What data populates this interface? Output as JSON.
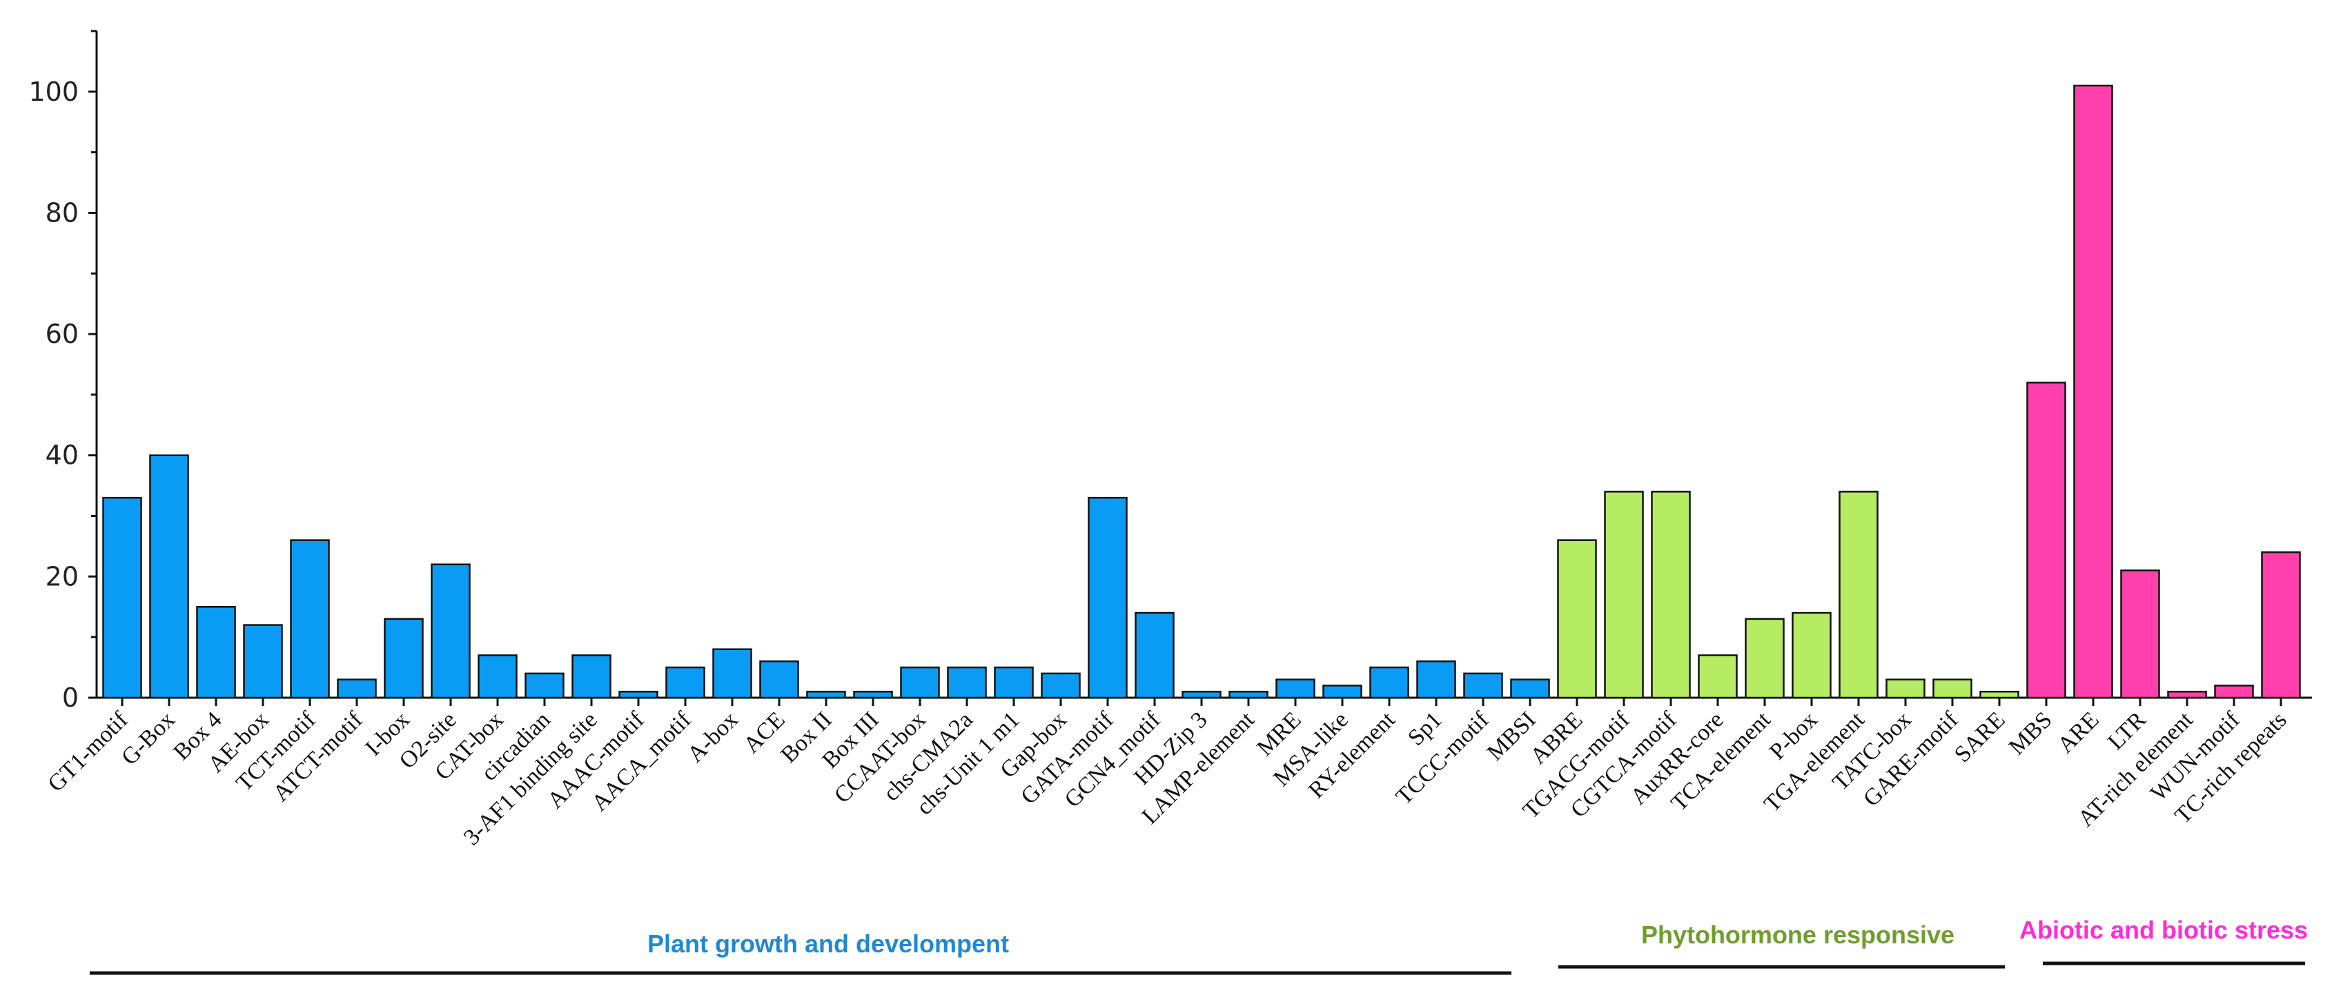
{
  "chart_data": {
    "type": "bar",
    "title": "",
    "xlabel": "",
    "ylabel": "",
    "ylim": [
      0,
      110
    ],
    "yticks": [
      0,
      20,
      40,
      60,
      80,
      100
    ],
    "grid": false,
    "legend": "none",
    "categories": [
      "GT1-motif",
      "G-Box",
      "Box 4",
      "AE-box",
      "TCT-motif",
      "ATCT-motif",
      "I-box",
      "O2-site",
      "CAT-box",
      "circadian",
      "3-AF1 binding site",
      "AAAC-motif",
      "AACA_motif",
      "A-box",
      "ACE",
      "Box II",
      "Box III",
      "CCAAT-box",
      "chs-CMA2a",
      "chs-Unit 1 m1",
      "Gap-box",
      "GATA-motif",
      "GCN4_motif",
      "HD-Zip 3",
      "LAMP-element",
      "MRE",
      "MSA-like",
      "RY-element",
      "Sp1",
      "TCCC-motif",
      "MBSI",
      "ABRE",
      "TGACG-motif",
      "CGTCA-motif",
      "AuxRR-core",
      "TCA-element",
      "P-box",
      "TGA-element",
      "TATC-box",
      "GARE-motif",
      "SARE",
      "MBS",
      "ARE",
      "LTR",
      "AT-rich element",
      "WUN-motif",
      "TC-rich repeats"
    ],
    "values": [
      33,
      40,
      15,
      12,
      26,
      3,
      13,
      22,
      7,
      4,
      7,
      1,
      5,
      8,
      6,
      1,
      1,
      5,
      5,
      5,
      4,
      33,
      14,
      1,
      1,
      3,
      2,
      5,
      6,
      4,
      3,
      26,
      34,
      34,
      7,
      13,
      14,
      34,
      3,
      3,
      1,
      52,
      101,
      21,
      1,
      2,
      24
    ],
    "groups": [
      {
        "name": "Plant growth and develompent",
        "start": 0,
        "end": 30,
        "bar_color": "#0a9cf5",
        "label_color": "#1e88d6"
      },
      {
        "name": "Phytohormone responsive",
        "start": 31,
        "end": 40,
        "bar_color": "#b5ec62",
        "label_color": "#6f9d2e"
      },
      {
        "name": "Abiotic and biotic stress",
        "start": 41,
        "end": 46,
        "bar_color": "#ff3fab",
        "label_color": "#ff2ad8"
      }
    ]
  }
}
